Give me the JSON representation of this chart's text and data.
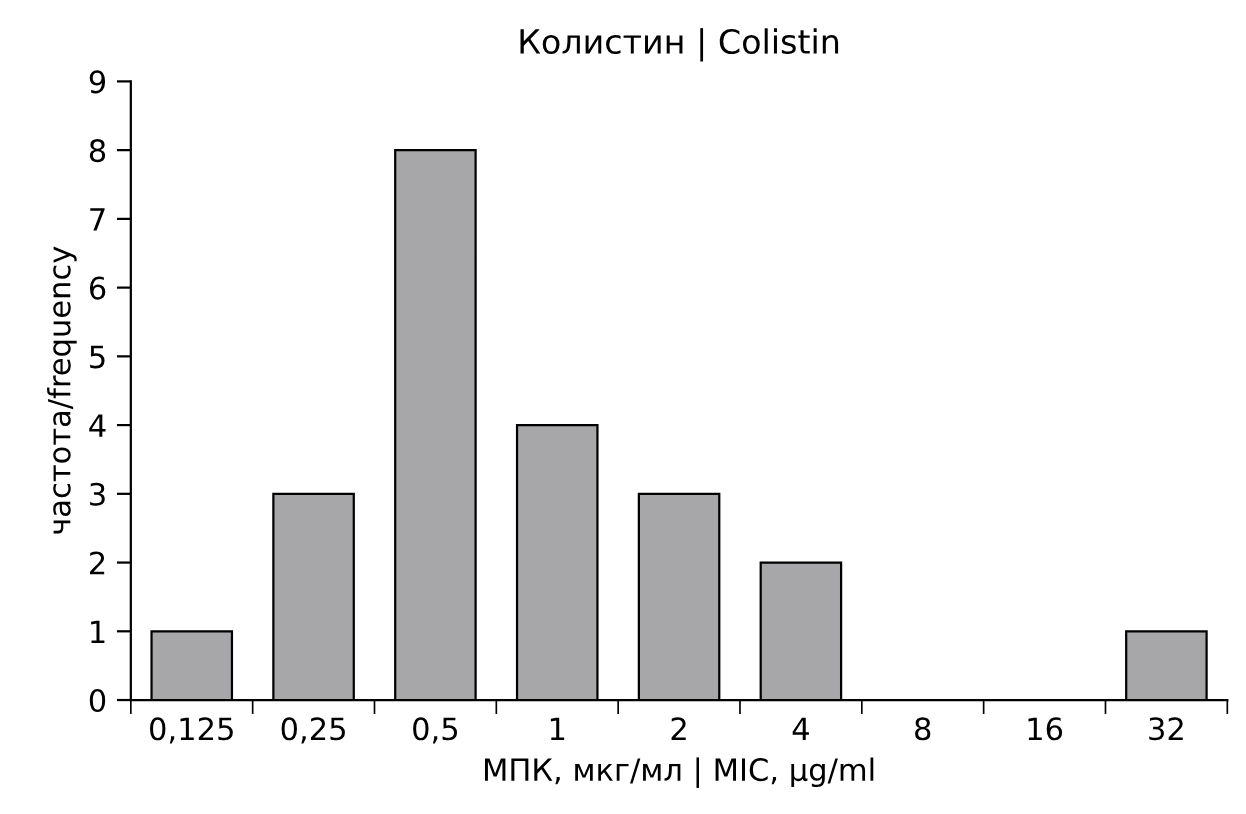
{
  "chart_data": {
    "type": "bar",
    "title": "Колистин | Colistin",
    "xlabel": "МПК, мкг/мл | MIC, μg/ml",
    "ylabel": "частота/frequency",
    "categories": [
      "0,125",
      "0,25",
      "0,5",
      "1",
      "2",
      "4",
      "8",
      "16",
      "32"
    ],
    "values": [
      1,
      3,
      8,
      4,
      3,
      2,
      0,
      0,
      1
    ],
    "color": "#a7a7aa",
    "ylim": [
      0,
      9
    ],
    "yticks": [
      0,
      1,
      2,
      3,
      4,
      5,
      6,
      7,
      8,
      9
    ],
    "grid": false,
    "legend": false
  }
}
